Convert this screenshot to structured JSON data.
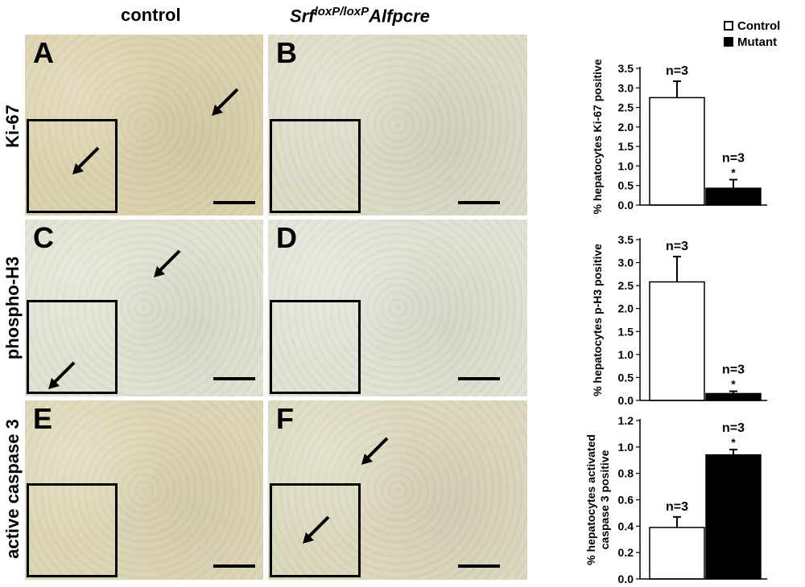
{
  "columns": {
    "control": "control",
    "mutant_prefix": "Srf",
    "mutant_sup": "loxP/loxP",
    "mutant_suffix": "Alfpcre"
  },
  "rows": [
    "Ki-67",
    "phospho-H3",
    "active caspase 3"
  ],
  "panels": [
    {
      "label": "A",
      "color": "#dcd2ad"
    },
    {
      "label": "B",
      "color": "#dcdbc6"
    },
    {
      "label": "C",
      "color": "#dee3d2"
    },
    {
      "label": "D",
      "color": "#dfe3d5"
    },
    {
      "label": "E",
      "color": "#ddd6b5"
    },
    {
      "label": "F",
      "color": "#dcd8be"
    }
  ],
  "legend": {
    "control": "Control",
    "mutant": "Mutant",
    "control_color": "#ffffff",
    "mutant_color": "#000000"
  },
  "chart_data": [
    {
      "type": "bar",
      "ylabel": "% hepatocytes Ki-67 positive",
      "ylim": [
        0,
        3.5
      ],
      "ticks": [
        "0.0",
        "0.5",
        "1.0",
        "1.5",
        "2.0",
        "2.5",
        "3.0",
        "3.5"
      ],
      "tick_values": [
        0,
        0.5,
        1.0,
        1.5,
        2.0,
        2.5,
        3.0,
        3.5
      ],
      "series": [
        {
          "name": "Control",
          "value": 2.75,
          "error": 0.42,
          "n_label": "n=3",
          "sig": ""
        },
        {
          "name": "Mutant",
          "value": 0.43,
          "error": 0.22,
          "n_label": "n=3",
          "sig": "*"
        }
      ]
    },
    {
      "type": "bar",
      "ylabel": "% hepatocytes p-H3 positive",
      "ylim": [
        0,
        3.5
      ],
      "ticks": [
        "0.0",
        "0.5",
        "1.0",
        "1.5",
        "2.0",
        "2.5",
        "3.0",
        "3.5"
      ],
      "tick_values": [
        0,
        0.5,
        1.0,
        1.5,
        2.0,
        2.5,
        3.0,
        3.5
      ],
      "series": [
        {
          "name": "Control",
          "value": 2.58,
          "error": 0.55,
          "n_label": "n=3",
          "sig": ""
        },
        {
          "name": "Mutant",
          "value": 0.15,
          "error": 0.05,
          "n_label": "n=3",
          "sig": "*"
        }
      ]
    },
    {
      "type": "bar",
      "ylabel": "% hepatocytes activated caspase 3 positive",
      "ylabel_lines": [
        "% hepatocytes activated",
        "caspase 3 positive"
      ],
      "ylim": [
        0,
        1.2
      ],
      "ticks": [
        "0.0",
        "0.2",
        "0.4",
        "0.6",
        "0.8",
        "1.0",
        "1.2"
      ],
      "tick_values": [
        0,
        0.2,
        0.4,
        0.6,
        0.8,
        1.0,
        1.2
      ],
      "series": [
        {
          "name": "Control",
          "value": 0.39,
          "error": 0.08,
          "n_label": "n=3",
          "sig": ""
        },
        {
          "name": "Mutant",
          "value": 0.94,
          "error": 0.04,
          "n_label": "n=3",
          "sig": "*"
        }
      ]
    }
  ]
}
